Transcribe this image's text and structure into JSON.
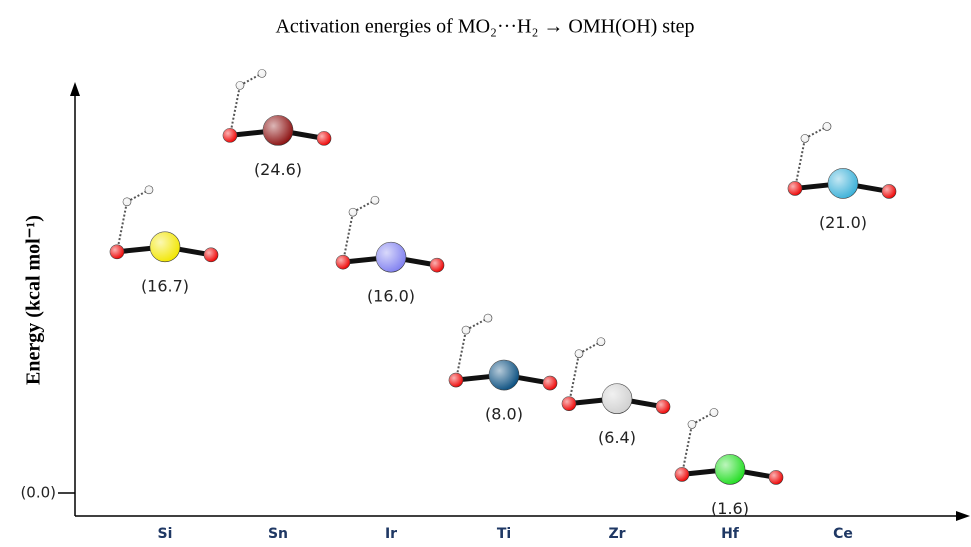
{
  "chart_data": {
    "type": "molecule-energy",
    "title": "Activation energies of MO₂···H₂ → OMH(OH) step",
    "y_label": "Energy (kcal mol⁻¹)",
    "categories": [
      "Si",
      "Sn",
      "Ir",
      "Ti",
      "Zr",
      "Hf",
      "Ce"
    ],
    "values": [
      16.7,
      24.6,
      16.0,
      8.0,
      6.4,
      1.6,
      21.0
    ],
    "value_labels": [
      "(16.7)",
      "(24.6)",
      "(16.0)",
      "(8.0)",
      "(6.4)",
      "(1.6)",
      "(21.0)"
    ],
    "colors": [
      "#f2e600",
      "#8b0f0f",
      "#8080f0",
      "#0a4f80",
      "#d0d0d0",
      "#22dd22",
      "#3ab0d8"
    ],
    "ylim": [
      0,
      27
    ],
    "yticks": [
      {
        "value": 0,
        "label": "(0.0)"
      }
    ]
  }
}
